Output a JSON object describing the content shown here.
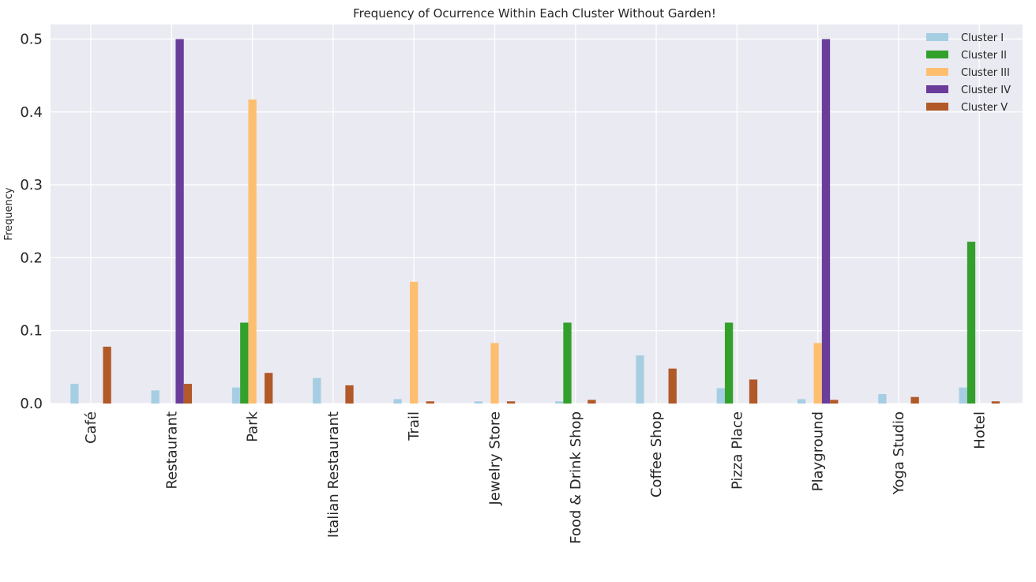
{
  "chart_data": {
    "type": "bar",
    "title": "Frequency of Ocurrence Within Each Cluster Without Garden!",
    "xlabel": "",
    "ylabel": "Frequency",
    "ylim": [
      0,
      0.52
    ],
    "yticks": [
      "0.0",
      "0.1",
      "0.2",
      "0.3",
      "0.4",
      "0.5"
    ],
    "grid": true,
    "legend_position": "top-right",
    "categories": [
      "Café",
      "Restaurant",
      "Park",
      "Italian Restaurant",
      "Trail",
      "Jewelry Store",
      "Food & Drink Shop",
      "Coffee Shop",
      "Pizza Place",
      "Playground",
      "Yoga Studio",
      "Hotel"
    ],
    "series": [
      {
        "name": "Cluster I",
        "color": "#a6cee3",
        "values": [
          0.027,
          0.018,
          0.022,
          0.035,
          0.006,
          0.003,
          0.003,
          0.066,
          0.021,
          0.006,
          0.013,
          0.022
        ]
      },
      {
        "name": "Cluster II",
        "color": "#33a02c",
        "values": [
          0,
          0,
          0.111,
          0,
          0,
          0,
          0.111,
          0,
          0.111,
          0,
          0,
          0.222
        ]
      },
      {
        "name": "Cluster III",
        "color": "#fdbf6f",
        "values": [
          0,
          0,
          0.417,
          0,
          0.167,
          0.083,
          0,
          0,
          0,
          0.083,
          0,
          0
        ]
      },
      {
        "name": "Cluster IV",
        "color": "#6a3d9a",
        "values": [
          0,
          0.5,
          0,
          0,
          0,
          0,
          0,
          0,
          0,
          0.5,
          0,
          0
        ]
      },
      {
        "name": "Cluster V",
        "color": "#b15928",
        "values": [
          0.078,
          0.027,
          0.042,
          0.025,
          0.003,
          0.003,
          0.005,
          0.048,
          0.033,
          0.005,
          0.009,
          0.003
        ]
      }
    ]
  }
}
